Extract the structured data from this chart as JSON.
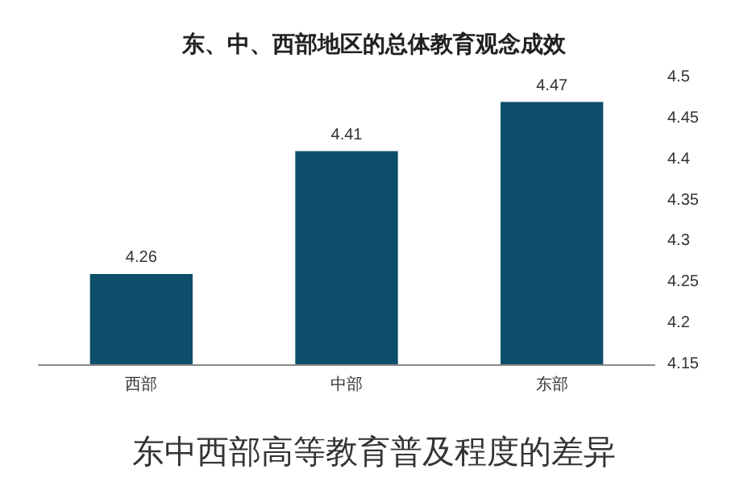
{
  "chart_data": {
    "type": "bar",
    "title": "东、中、西部地区的总体教育观念成效",
    "categories": [
      "西部",
      "中部",
      "东部"
    ],
    "values": [
      4.26,
      4.41,
      4.47
    ],
    "color": "#0d4f6b",
    "ylim": [
      4.15,
      4.5
    ],
    "yticks": [
      4.15,
      4.2,
      4.25,
      4.3,
      4.35,
      4.4,
      4.45,
      4.5
    ],
    "grid": false,
    "data_labels": true,
    "annotations": [
      "东中西部高等教育普及程度的差异"
    ]
  }
}
